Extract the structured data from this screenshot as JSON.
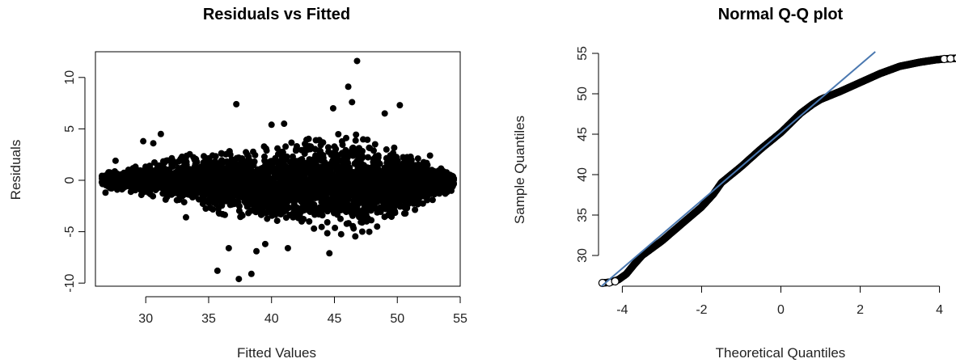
{
  "chart_data": [
    {
      "type": "scatter",
      "title": "Residuals vs Fitted",
      "xlabel": "Fitted Values",
      "ylabel": "Residuals",
      "xlim": [
        26,
        55
      ],
      "ylim": [
        -10.3,
        12.5
      ],
      "xticks": [
        "30",
        "35",
        "40",
        "45",
        "50",
        "55"
      ],
      "yticks": [
        "-10",
        "-5",
        "0",
        "5",
        "10"
      ],
      "point_color": "#000000",
      "band": [
        [
          26.5,
          -0.8,
          0.8
        ],
        [
          28,
          -1.0,
          1.0
        ],
        [
          30,
          -1.6,
          1.6
        ],
        [
          32,
          -2.0,
          2.2
        ],
        [
          34,
          -2.6,
          2.7
        ],
        [
          36,
          -3.3,
          3.0
        ],
        [
          38,
          -3.8,
          3.2
        ],
        [
          40,
          -4.2,
          3.4
        ],
        [
          42,
          -4.4,
          3.9
        ],
        [
          44,
          -4.9,
          4.5
        ],
        [
          45.5,
          -5.8,
          5.0
        ],
        [
          47,
          -5.4,
          4.6
        ],
        [
          49,
          -4.4,
          3.6
        ],
        [
          51,
          -3.2,
          2.6
        ],
        [
          53,
          -1.8,
          1.6
        ],
        [
          54.5,
          -0.9,
          0.7
        ]
      ],
      "outliers": [
        {
          "x": 46.8,
          "y": 11.6
        },
        {
          "x": 46.1,
          "y": 9.1
        },
        {
          "x": 37.2,
          "y": 7.4
        },
        {
          "x": 46.4,
          "y": 7.6
        },
        {
          "x": 50.2,
          "y": 7.3
        },
        {
          "x": 44.9,
          "y": 7.0
        },
        {
          "x": 31.2,
          "y": 4.5
        },
        {
          "x": 29.8,
          "y": 3.8
        },
        {
          "x": 30.6,
          "y": 3.6
        },
        {
          "x": 40.0,
          "y": 5.4
        },
        {
          "x": 41.0,
          "y": 5.5
        },
        {
          "x": 49.0,
          "y": 6.5
        },
        {
          "x": 35.7,
          "y": -8.8
        },
        {
          "x": 37.4,
          "y": -9.6
        },
        {
          "x": 38.4,
          "y": -9.1
        },
        {
          "x": 36.6,
          "y": -6.6
        },
        {
          "x": 38.8,
          "y": -6.9
        },
        {
          "x": 41.3,
          "y": -6.6
        },
        {
          "x": 39.5,
          "y": -6.2
        },
        {
          "x": 33.2,
          "y": -3.6
        },
        {
          "x": 26.8,
          "y": -1.2
        },
        {
          "x": 28.9,
          "y": -0.6
        },
        {
          "x": 27.6,
          "y": 1.9
        },
        {
          "x": 52.6,
          "y": 2.4
        },
        {
          "x": 44.6,
          "y": -7.1
        },
        {
          "x": 53.8,
          "y": -1.0
        }
      ]
    },
    {
      "type": "scatter",
      "title": "Normal Q-Q plot",
      "xlabel": "Theoretical Quantiles",
      "ylabel": "Sample Quantiles",
      "xlim": [
        -4.6,
        4.6
      ],
      "ylim": [
        26.2,
        55.2
      ],
      "xticks": [
        "-4",
        "-2",
        "0",
        "2",
        "4"
      ],
      "yticks": [
        "30",
        "35",
        "40",
        "45",
        "50",
        "55"
      ],
      "point_color": "#000000",
      "line_color": "#4a78b0",
      "line": {
        "intercept": 45.2,
        "slope": 4.2
      },
      "points": [
        {
          "x": -4.5,
          "y": 26.6
        },
        {
          "x": -4.3,
          "y": 26.7
        },
        {
          "x": -4.1,
          "y": 27.0
        },
        {
          "x": -3.9,
          "y": 27.7
        },
        {
          "x": -3.7,
          "y": 28.9
        },
        {
          "x": -3.5,
          "y": 30.0
        },
        {
          "x": -3.0,
          "y": 31.8
        },
        {
          "x": -2.5,
          "y": 33.9
        },
        {
          "x": -2.0,
          "y": 36.0
        },
        {
          "x": -1.7,
          "y": 37.6
        },
        {
          "x": -1.5,
          "y": 39.0
        },
        {
          "x": -1.0,
          "y": 41.0
        },
        {
          "x": -0.5,
          "y": 43.2
        },
        {
          "x": 0.0,
          "y": 45.2
        },
        {
          "x": 0.5,
          "y": 47.6
        },
        {
          "x": 0.8,
          "y": 48.7
        },
        {
          "x": 1.0,
          "y": 49.3
        },
        {
          "x": 1.5,
          "y": 50.3
        },
        {
          "x": 2.0,
          "y": 51.4
        },
        {
          "x": 2.5,
          "y": 52.5
        },
        {
          "x": 3.0,
          "y": 53.4
        },
        {
          "x": 3.5,
          "y": 53.9
        },
        {
          "x": 3.9,
          "y": 54.2
        },
        {
          "x": 4.1,
          "y": 54.3
        },
        {
          "x": 4.25,
          "y": 54.35
        },
        {
          "x": 4.45,
          "y": 54.4
        }
      ],
      "tail_points": [
        {
          "x": -4.5,
          "y": 26.6
        },
        {
          "x": -4.33,
          "y": 26.65
        },
        {
          "x": -4.18,
          "y": 26.8
        },
        {
          "x": 4.12,
          "y": 54.3
        },
        {
          "x": 4.28,
          "y": 54.35
        },
        {
          "x": 4.45,
          "y": 54.4
        }
      ]
    }
  ]
}
